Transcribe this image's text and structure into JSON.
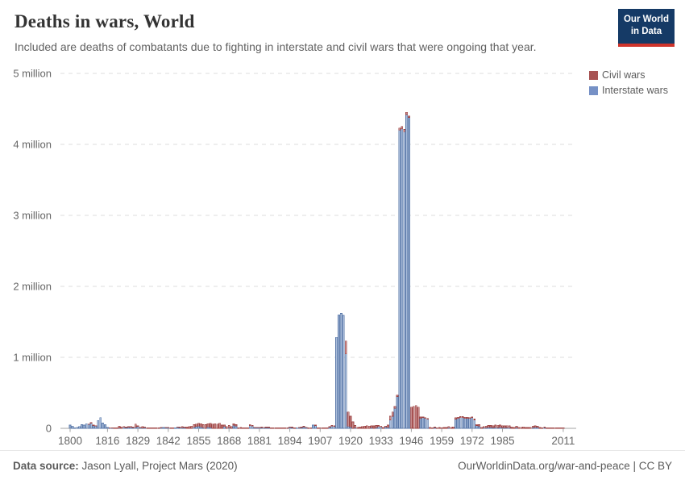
{
  "header": {
    "title": "Deaths in wars, World",
    "subtitle": "Included are deaths of combatants due to fighting in interstate and civil wars that were ongoing that year."
  },
  "logo": {
    "line1": "Our World",
    "line2": "in Data",
    "bg_color": "#153a66",
    "accent_color": "#cf342b"
  },
  "legend": {
    "items": [
      {
        "label": "Civil wars",
        "color": "#a85454"
      },
      {
        "label": "Interstate wars",
        "color": "#7691c6"
      }
    ]
  },
  "footer": {
    "source_label": "Data source:",
    "source_value": " Jason Lyall, Project Mars (2020)",
    "link": "OurWorldinData.org/war-and-peace",
    "suffix": " | CC BY"
  },
  "chart_data": {
    "type": "bar",
    "stacked": true,
    "title": "Deaths in wars, World",
    "ylabel": "",
    "xlabel": "",
    "grid": true,
    "legend_position": "top-right",
    "ylim": [
      0,
      5000000
    ],
    "y_ticks": [
      {
        "value": 0,
        "label": "0"
      },
      {
        "value": 1000000,
        "label": "1 million"
      },
      {
        "value": 2000000,
        "label": "2 million"
      },
      {
        "value": 3000000,
        "label": "3 million"
      },
      {
        "value": 4000000,
        "label": "4 million"
      },
      {
        "value": 5000000,
        "label": "5 million"
      }
    ],
    "x_tick_labels": [
      1800,
      1816,
      1829,
      1842,
      1855,
      1868,
      1881,
      1894,
      1907,
      1920,
      1933,
      1946,
      1959,
      1972,
      1985,
      2011
    ],
    "series_order_bottom_to_top": [
      "Interstate wars",
      "Civil wars"
    ],
    "colors": {
      "interstate": {
        "fill": "#aabdda",
        "stroke": "#5b79a9"
      },
      "civil": {
        "fill": "#c98f8f",
        "stroke": "#9e4444"
      }
    },
    "unit": "deaths of combatants",
    "columns": [
      "year",
      "interstate_deaths_thousands",
      "civil_deaths_thousands"
    ],
    "points": [
      [
        1800,
        45,
        0
      ],
      [
        1801,
        30,
        0
      ],
      [
        1802,
        10,
        0
      ],
      [
        1803,
        15,
        0
      ],
      [
        1804,
        25,
        0
      ],
      [
        1805,
        50,
        0
      ],
      [
        1806,
        45,
        0
      ],
      [
        1807,
        65,
        0
      ],
      [
        1808,
        55,
        5
      ],
      [
        1809,
        75,
        5
      ],
      [
        1810,
        40,
        5
      ],
      [
        1811,
        30,
        5
      ],
      [
        1812,
        110,
        0
      ],
      [
        1813,
        150,
        0
      ],
      [
        1814,
        75,
        0
      ],
      [
        1815,
        55,
        0
      ],
      [
        1816,
        12,
        0
      ],
      [
        1817,
        5,
        5
      ],
      [
        1818,
        5,
        5
      ],
      [
        1819,
        0,
        8
      ],
      [
        1820,
        0,
        10
      ],
      [
        1821,
        5,
        25
      ],
      [
        1822,
        0,
        20
      ],
      [
        1823,
        15,
        10
      ],
      [
        1824,
        8,
        10
      ],
      [
        1825,
        18,
        8
      ],
      [
        1826,
        15,
        10
      ],
      [
        1827,
        10,
        8
      ],
      [
        1828,
        15,
        45
      ],
      [
        1829,
        25,
        10
      ],
      [
        1830,
        10,
        5
      ],
      [
        1831,
        5,
        20
      ],
      [
        1832,
        10,
        10
      ],
      [
        1833,
        0,
        8
      ],
      [
        1834,
        0,
        5
      ],
      [
        1835,
        0,
        10
      ],
      [
        1836,
        0,
        8
      ],
      [
        1837,
        0,
        5
      ],
      [
        1838,
        0,
        5
      ],
      [
        1839,
        10,
        5
      ],
      [
        1840,
        12,
        0
      ],
      [
        1841,
        8,
        5
      ],
      [
        1842,
        8,
        5
      ],
      [
        1843,
        0,
        5
      ],
      [
        1844,
        0,
        5
      ],
      [
        1845,
        8,
        0
      ],
      [
        1846,
        15,
        5
      ],
      [
        1847,
        12,
        5
      ],
      [
        1848,
        8,
        15
      ],
      [
        1849,
        8,
        12
      ],
      [
        1850,
        0,
        20
      ],
      [
        1851,
        0,
        25
      ],
      [
        1852,
        0,
        30
      ],
      [
        1853,
        15,
        35
      ],
      [
        1854,
        25,
        35
      ],
      [
        1855,
        30,
        40
      ],
      [
        1856,
        20,
        45
      ],
      [
        1857,
        10,
        40
      ],
      [
        1858,
        0,
        50
      ],
      [
        1859,
        20,
        45
      ],
      [
        1860,
        15,
        55
      ],
      [
        1861,
        0,
        60
      ],
      [
        1862,
        0,
        65
      ],
      [
        1863,
        0,
        60
      ],
      [
        1864,
        0,
        70
      ],
      [
        1865,
        0,
        45
      ],
      [
        1866,
        25,
        20
      ],
      [
        1867,
        0,
        25
      ],
      [
        1868,
        10,
        30
      ],
      [
        1869,
        0,
        25
      ],
      [
        1870,
        45,
        20
      ],
      [
        1871,
        35,
        15
      ],
      [
        1872,
        0,
        10
      ],
      [
        1873,
        0,
        12
      ],
      [
        1874,
        0,
        10
      ],
      [
        1875,
        0,
        8
      ],
      [
        1876,
        0,
        10
      ],
      [
        1877,
        40,
        15
      ],
      [
        1878,
        30,
        10
      ],
      [
        1879,
        10,
        5
      ],
      [
        1880,
        8,
        5
      ],
      [
        1881,
        8,
        5
      ],
      [
        1882,
        8,
        8
      ],
      [
        1883,
        8,
        5
      ],
      [
        1884,
        12,
        5
      ],
      [
        1885,
        10,
        8
      ],
      [
        1886,
        0,
        5
      ],
      [
        1887,
        0,
        5
      ],
      [
        1888,
        0,
        5
      ],
      [
        1889,
        0,
        5
      ],
      [
        1890,
        0,
        5
      ],
      [
        1891,
        0,
        8
      ],
      [
        1892,
        0,
        5
      ],
      [
        1893,
        0,
        8
      ],
      [
        1894,
        15,
        5
      ],
      [
        1895,
        12,
        5
      ],
      [
        1896,
        0,
        8
      ],
      [
        1897,
        8,
        0
      ],
      [
        1898,
        8,
        5
      ],
      [
        1899,
        10,
        8
      ],
      [
        1900,
        20,
        8
      ],
      [
        1901,
        10,
        5
      ],
      [
        1902,
        0,
        8
      ],
      [
        1903,
        0,
        5
      ],
      [
        1904,
        45,
        0
      ],
      [
        1905,
        40,
        8
      ],
      [
        1906,
        0,
        5
      ],
      [
        1907,
        0,
        5
      ],
      [
        1908,
        0,
        5
      ],
      [
        1909,
        0,
        8
      ],
      [
        1910,
        0,
        8
      ],
      [
        1911,
        15,
        8
      ],
      [
        1912,
        30,
        10
      ],
      [
        1913,
        25,
        8
      ],
      [
        1914,
        1280,
        0
      ],
      [
        1915,
        1600,
        0
      ],
      [
        1916,
        1620,
        0
      ],
      [
        1917,
        1590,
        0
      ],
      [
        1918,
        1050,
        180
      ],
      [
        1919,
        30,
        200
      ],
      [
        1920,
        20,
        150
      ],
      [
        1921,
        0,
        90
      ],
      [
        1922,
        10,
        30
      ],
      [
        1923,
        0,
        15
      ],
      [
        1924,
        0,
        20
      ],
      [
        1925,
        0,
        25
      ],
      [
        1926,
        0,
        30
      ],
      [
        1927,
        0,
        35
      ],
      [
        1928,
        0,
        30
      ],
      [
        1929,
        10,
        25
      ],
      [
        1930,
        0,
        35
      ],
      [
        1931,
        10,
        30
      ],
      [
        1932,
        25,
        15
      ],
      [
        1933,
        20,
        10
      ],
      [
        1934,
        0,
        15
      ],
      [
        1935,
        20,
        10
      ],
      [
        1936,
        15,
        30
      ],
      [
        1937,
        120,
        50
      ],
      [
        1938,
        170,
        60
      ],
      [
        1939,
        280,
        30
      ],
      [
        1940,
        450,
        20
      ],
      [
        1941,
        4200,
        30
      ],
      [
        1942,
        4220,
        30
      ],
      [
        1943,
        4180,
        30
      ],
      [
        1944,
        4420,
        30
      ],
      [
        1945,
        4380,
        20
      ],
      [
        1946,
        0,
        300
      ],
      [
        1947,
        0,
        310
      ],
      [
        1948,
        0,
        320
      ],
      [
        1949,
        0,
        300
      ],
      [
        1950,
        140,
        20
      ],
      [
        1951,
        150,
        10
      ],
      [
        1952,
        140,
        10
      ],
      [
        1953,
        130,
        10
      ],
      [
        1954,
        0,
        15
      ],
      [
        1955,
        0,
        8
      ],
      [
        1956,
        8,
        10
      ],
      [
        1957,
        0,
        10
      ],
      [
        1958,
        0,
        12
      ],
      [
        1959,
        0,
        10
      ],
      [
        1960,
        0,
        12
      ],
      [
        1961,
        0,
        12
      ],
      [
        1962,
        10,
        15
      ],
      [
        1963,
        0,
        15
      ],
      [
        1964,
        0,
        20
      ],
      [
        1965,
        130,
        20
      ],
      [
        1966,
        140,
        15
      ],
      [
        1967,
        150,
        15
      ],
      [
        1968,
        150,
        15
      ],
      [
        1969,
        140,
        15
      ],
      [
        1970,
        140,
        15
      ],
      [
        1971,
        140,
        10
      ],
      [
        1972,
        150,
        10
      ],
      [
        1973,
        120,
        10
      ],
      [
        1974,
        40,
        15
      ],
      [
        1975,
        30,
        20
      ],
      [
        1976,
        0,
        15
      ],
      [
        1977,
        8,
        15
      ],
      [
        1978,
        10,
        20
      ],
      [
        1979,
        15,
        25
      ],
      [
        1980,
        15,
        25
      ],
      [
        1981,
        12,
        25
      ],
      [
        1982,
        15,
        30
      ],
      [
        1983,
        12,
        30
      ],
      [
        1984,
        15,
        30
      ],
      [
        1985,
        12,
        25
      ],
      [
        1986,
        10,
        25
      ],
      [
        1987,
        12,
        25
      ],
      [
        1988,
        10,
        25
      ],
      [
        1989,
        0,
        20
      ],
      [
        1990,
        0,
        15
      ],
      [
        1991,
        10,
        20
      ],
      [
        1992,
        0,
        15
      ],
      [
        1993,
        0,
        15
      ],
      [
        1994,
        0,
        20
      ],
      [
        1995,
        0,
        12
      ],
      [
        1996,
        0,
        12
      ],
      [
        1997,
        0,
        15
      ],
      [
        1998,
        10,
        20
      ],
      [
        1999,
        15,
        20
      ],
      [
        2000,
        15,
        15
      ],
      [
        2001,
        0,
        12
      ],
      [
        2002,
        0,
        10
      ],
      [
        2003,
        8,
        10
      ],
      [
        2004,
        0,
        10
      ],
      [
        2005,
        0,
        8
      ],
      [
        2006,
        0,
        8
      ],
      [
        2007,
        0,
        10
      ],
      [
        2008,
        0,
        8
      ],
      [
        2009,
        0,
        8
      ],
      [
        2010,
        0,
        5
      ],
      [
        2011,
        0,
        8
      ]
    ]
  }
}
